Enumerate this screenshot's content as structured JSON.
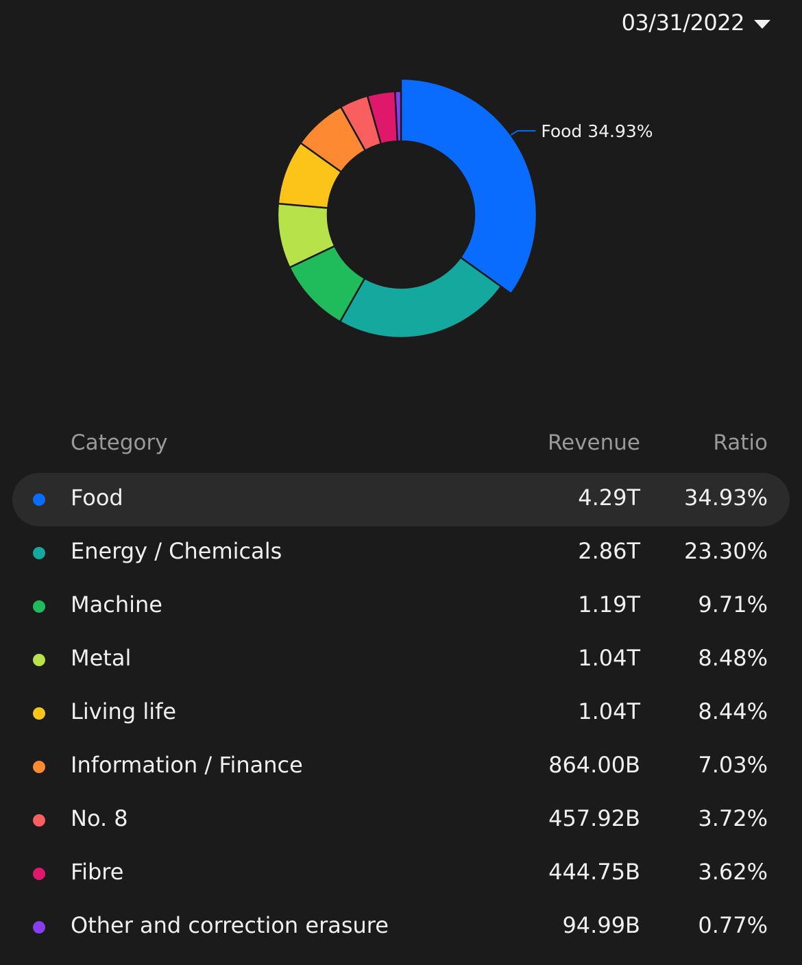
{
  "date_selector": {
    "value": "03/31/2022",
    "icon": "caret-down-icon"
  },
  "chart_data": {
    "type": "pie",
    "variant": "donut",
    "callout": "Food 34.93%",
    "slices": [
      {
        "label": "Food",
        "value": 34.93,
        "color": "#0a6cff"
      },
      {
        "label": "Energy / Chemicals",
        "value": 23.3,
        "color": "#14a89e"
      },
      {
        "label": "Machine",
        "value": 9.71,
        "color": "#20bc5c"
      },
      {
        "label": "Metal",
        "value": 8.48,
        "color": "#b8e24a"
      },
      {
        "label": "Living life",
        "value": 8.44,
        "color": "#fcc419"
      },
      {
        "label": "Information / Finance",
        "value": 7.03,
        "color": "#fd8a32"
      },
      {
        "label": "No. 8",
        "value": 3.72,
        "color": "#fa5f5f"
      },
      {
        "label": "Fibre",
        "value": 3.62,
        "color": "#e0186b"
      },
      {
        "label": "Other and correction erasure",
        "value": 0.77,
        "color": "#8a3cf2"
      }
    ]
  },
  "table": {
    "headers": {
      "category": "Category",
      "revenue": "Revenue",
      "ratio": "Ratio"
    },
    "rows": [
      {
        "category": "Food",
        "revenue": "4.29T",
        "ratio": "34.93%",
        "color": "#0a6cff",
        "selected": true
      },
      {
        "category": "Energy / Chemicals",
        "revenue": "2.86T",
        "ratio": "23.30%",
        "color": "#14a89e"
      },
      {
        "category": "Machine",
        "revenue": "1.19T",
        "ratio": "9.71%",
        "color": "#20bc5c"
      },
      {
        "category": "Metal",
        "revenue": "1.04T",
        "ratio": "8.48%",
        "color": "#b8e24a"
      },
      {
        "category": "Living life",
        "revenue": "1.04T",
        "ratio": "8.44%",
        "color": "#fcc419"
      },
      {
        "category": "Information / Finance",
        "revenue": "864.00B",
        "ratio": "7.03%",
        "color": "#fd8a32"
      },
      {
        "category": "No. 8",
        "revenue": "457.92B",
        "ratio": "3.72%",
        "color": "#fa5f5f"
      },
      {
        "category": "Fibre",
        "revenue": "444.75B",
        "ratio": "3.62%",
        "color": "#e0186b"
      },
      {
        "category": "Other and correction erasure",
        "revenue": "94.99B",
        "ratio": "0.77%",
        "color": "#8a3cf2"
      }
    ]
  }
}
